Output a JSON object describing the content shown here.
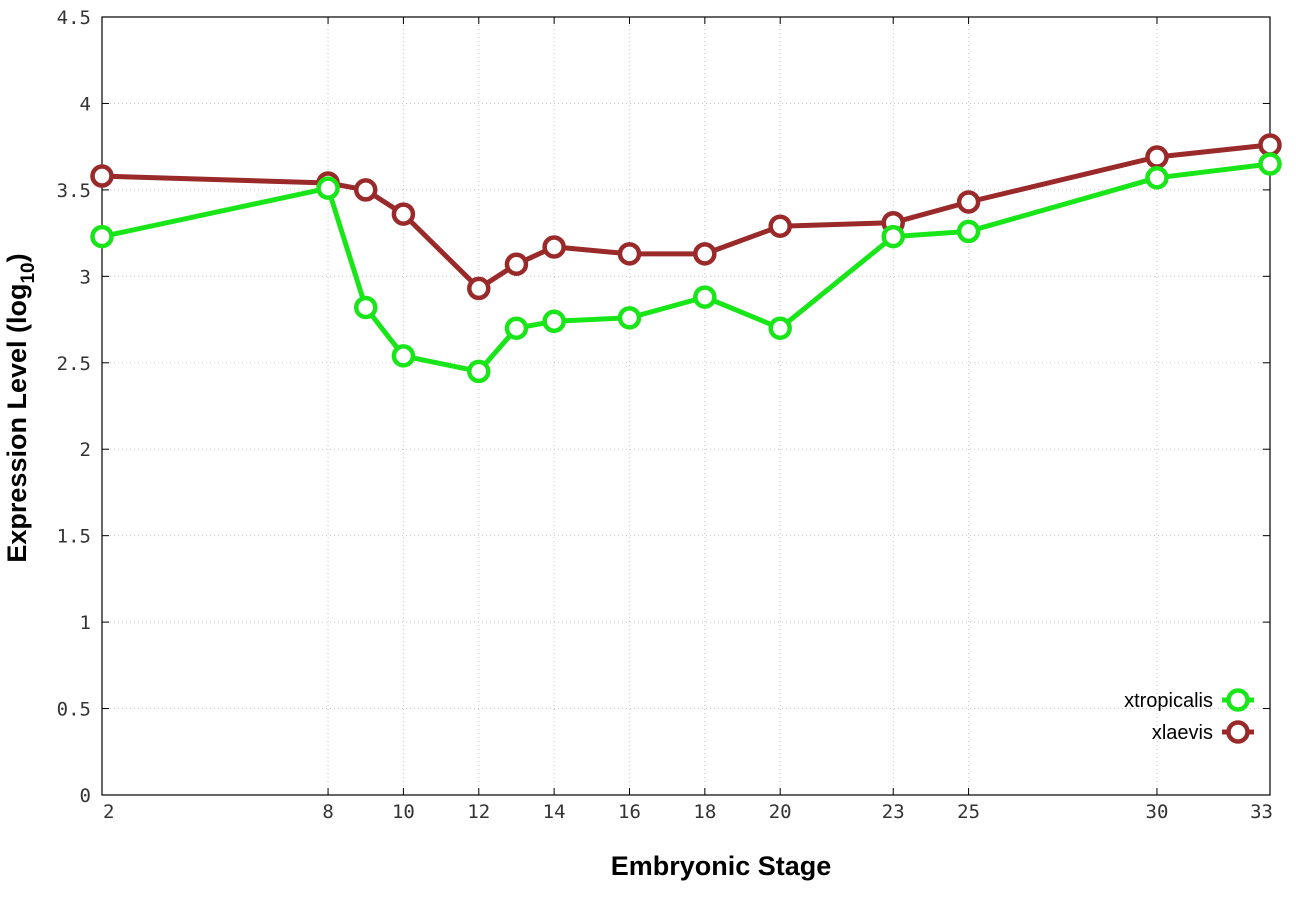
{
  "chart_data": {
    "type": "line",
    "title": "",
    "xlabel": "Embryonic Stage",
    "ylabel": "Expression Level (log",
    "ylabel_subscript": "10",
    "ylabel_suffix": ")",
    "xlim": [
      2,
      33
    ],
    "ylim": [
      0,
      4.5
    ],
    "xticks": [
      {
        "value": 2,
        "label": "2"
      },
      {
        "value": 8,
        "label": "8"
      },
      {
        "value": 10,
        "label": "10"
      },
      {
        "value": 12,
        "label": "12"
      },
      {
        "value": 14,
        "label": "14"
      },
      {
        "value": 16,
        "label": "16"
      },
      {
        "value": 18,
        "label": "18"
      },
      {
        "value": 20,
        "label": "20"
      },
      {
        "value": 23,
        "label": "23"
      },
      {
        "value": 25,
        "label": "25"
      },
      {
        "value": 30,
        "label": "30"
      },
      {
        "value": 33,
        "label": "33"
      }
    ],
    "yticks": [
      {
        "value": 0,
        "label": "0"
      },
      {
        "value": 0.5,
        "label": "0.5"
      },
      {
        "value": 1,
        "label": "1"
      },
      {
        "value": 1.5,
        "label": "1.5"
      },
      {
        "value": 2,
        "label": "2"
      },
      {
        "value": 2.5,
        "label": "2.5"
      },
      {
        "value": 3,
        "label": "3"
      },
      {
        "value": 3.5,
        "label": "3.5"
      },
      {
        "value": 4,
        "label": "4"
      },
      {
        "value": 4.5,
        "label": "4.5"
      }
    ],
    "grid": true,
    "legend_position": "bottom-right",
    "series": [
      {
        "name": "xtropicalis",
        "color": "#19e619",
        "x": [
          2,
          8,
          9,
          10,
          12,
          13,
          14,
          16,
          18,
          20,
          23,
          25,
          30,
          33
        ],
        "y": [
          3.23,
          3.51,
          2.82,
          2.54,
          2.45,
          2.7,
          2.74,
          2.76,
          2.88,
          2.7,
          3.23,
          3.26,
          3.57,
          3.65
        ]
      },
      {
        "name": "xlaevis",
        "color": "#9a2a2a",
        "x": [
          2,
          8,
          9,
          10,
          12,
          13,
          14,
          16,
          18,
          20,
          23,
          25,
          30,
          33
        ],
        "y": [
          3.58,
          3.54,
          3.5,
          3.36,
          2.93,
          3.07,
          3.17,
          3.13,
          3.13,
          3.29,
          3.31,
          3.43,
          3.69,
          3.76
        ]
      }
    ]
  }
}
